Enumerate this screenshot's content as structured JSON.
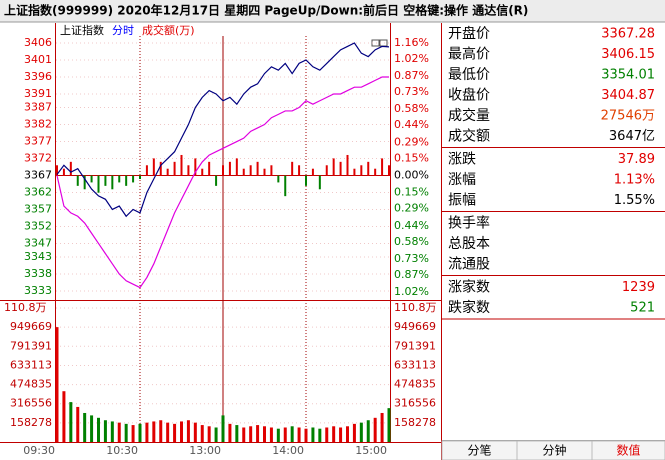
{
  "header": {
    "title": "上证指数(999999)  2020年12月17日 星期四 PageUp/Down:前后日 空格键:操作 通达信(R)"
  },
  "chart_data": {
    "type": "line",
    "legend": [
      {
        "label": "上证指数",
        "color": "#000000"
      },
      {
        "label": "分时",
        "color": "#0000ff"
      },
      {
        "label": "成交额(万)",
        "color": "#e00000"
      }
    ],
    "xticks": [
      "09:30",
      "10:30",
      "13:00",
      "14:00",
      "15:00"
    ],
    "ylim": [
      3330.35,
      3408.36
    ],
    "yticks": [
      3406,
      3401,
      3396,
      3391,
      3387,
      3382,
      3377,
      3372,
      3367,
      3362,
      3357,
      3352,
      3347,
      3343,
      3338,
      3333
    ],
    "y2lim": [
      -1.088,
      1.229
    ],
    "y2ticks": [
      {
        "value": 1.16,
        "label": "1.16%"
      },
      {
        "value": 1.02,
        "label": "1.02%"
      },
      {
        "value": 0.87,
        "label": "0.87%"
      },
      {
        "value": 0.73,
        "label": "0.73%"
      },
      {
        "value": 0.58,
        "label": "0.58%"
      },
      {
        "value": 0.44,
        "label": "0.44%"
      },
      {
        "value": 0.29,
        "label": "0.29%"
      },
      {
        "value": 0.15,
        "label": "0.15%"
      },
      {
        "value": 0,
        "label": "0.00%"
      },
      {
        "value": -0.15,
        "label": "0.15%"
      },
      {
        "value": -0.29,
        "label": "0.29%"
      },
      {
        "value": -0.44,
        "label": "0.44%"
      },
      {
        "value": -0.58,
        "label": "0.58%"
      },
      {
        "value": -0.73,
        "label": "0.73%"
      },
      {
        "value": -0.87,
        "label": "0.87%"
      },
      {
        "value": -1.02,
        "label": "1.02%"
      }
    ],
    "up_color": "#e00000",
    "down_color": "#008000",
    "series": [
      {
        "color": "#000080",
        "values": [
          3367.3,
          3370,
          3368,
          3369,
          3366,
          3363,
          3361,
          3360,
          3357,
          3358,
          3355,
          3357,
          3356,
          3362,
          3366,
          3370,
          3372,
          3374,
          3378,
          3382,
          3387,
          3390,
          3392,
          3391,
          3389,
          3390,
          3388,
          3391,
          3393,
          3394,
          3397,
          3399,
          3398,
          3400,
          3397,
          3400,
          3401,
          3399,
          3398,
          3400,
          3402,
          3404,
          3405,
          3406,
          3403,
          3402,
          3404,
          3405,
          3404.87
        ]
      },
      {
        "color": "#e000e0",
        "values": [
          3367,
          3358,
          3356,
          3355,
          3353,
          3350,
          3347,
          3344,
          3341,
          3338,
          3336,
          3335,
          3334,
          3337,
          3341,
          3346,
          3351,
          3356,
          3360,
          3364,
          3368,
          3371,
          3373,
          3374,
          3375,
          3376,
          3377,
          3378,
          3380,
          3381,
          3382,
          3384,
          3385,
          3386,
          3386,
          3387,
          3389,
          3388,
          3389,
          3390,
          3391,
          3391,
          3392,
          3393,
          3393,
          3394,
          3395,
          3396,
          3396
        ]
      }
    ],
    "bars": {
      "axis": "y2",
      "values": [
        0.09,
        0.06,
        0.12,
        -0.09,
        -0.12,
        -0.06,
        -0.15,
        -0.09,
        -0.12,
        -0.06,
        -0.09,
        -0.06,
        -0.03,
        0.09,
        0.15,
        0.12,
        0.06,
        0.12,
        0.18,
        0.09,
        0.15,
        0.06,
        0.12,
        -0.09,
        0.09,
        0.12,
        0.15,
        0.06,
        0.09,
        0.12,
        0.06,
        0.09,
        -0.06,
        -0.18,
        0.12,
        0.09,
        -0.09,
        0.06,
        -0.12,
        0.09,
        0.15,
        0.12,
        0.18,
        0.06,
        0.09,
        0.12,
        0.06,
        0.15,
        0.09
      ]
    },
    "volume": {
      "vlim": [
        0,
        1157800
      ],
      "vticks": [
        {
          "value": 1108000,
          "label": "110.8万"
        },
        949669,
        791391,
        633113,
        474835,
        316556,
        158278
      ],
      "values": [
        950000,
        420000,
        330000,
        290000,
        240000,
        220000,
        200000,
        180000,
        170000,
        160000,
        150000,
        140000,
        150000,
        160000,
        170000,
        180000,
        160000,
        150000,
        170000,
        180000,
        160000,
        140000,
        130000,
        120000,
        220000,
        150000,
        140000,
        120000,
        130000,
        140000,
        130000,
        120000,
        110000,
        120000,
        130000,
        120000,
        110000,
        120000,
        110000,
        120000,
        130000,
        120000,
        130000,
        150000,
        160000,
        180000,
        200000,
        240000,
        280000
      ]
    }
  },
  "panel": {
    "groups": [
      [
        {
          "label": "开盘价",
          "value": "3367.28",
          "color": "#e00000"
        },
        {
          "label": "最高价",
          "value": "3406.15",
          "color": "#e00000"
        },
        {
          "label": "最低价",
          "value": "3354.01",
          "color": "#008000"
        },
        {
          "label": "收盘价",
          "value": "3404.87",
          "color": "#e00000"
        },
        {
          "label": "成交量",
          "value": "27546万",
          "color": "#e04000"
        },
        {
          "label": "成交额",
          "value": "3647亿",
          "color": "#000000"
        }
      ],
      [
        {
          "label": "涨跌",
          "value": "37.89",
          "color": "#e00000"
        },
        {
          "label": "涨幅",
          "value": "1.13%",
          "color": "#e00000"
        },
        {
          "label": "振幅",
          "value": "1.55%",
          "color": "#000000"
        }
      ],
      [
        {
          "label": "换手率"
        },
        {
          "label": "总股本"
        },
        {
          "label": "流通股"
        }
      ],
      [
        {
          "label": "涨家数",
          "value": "1239",
          "color": "#e00000"
        },
        {
          "label": "跌家数",
          "value": "521",
          "color": "#008000"
        }
      ]
    ]
  },
  "tabs": [
    {
      "label": "分笔",
      "color": "#000000"
    },
    {
      "label": "分钟",
      "color": "#000000"
    },
    {
      "label": "数值",
      "color": "#e00000"
    }
  ]
}
